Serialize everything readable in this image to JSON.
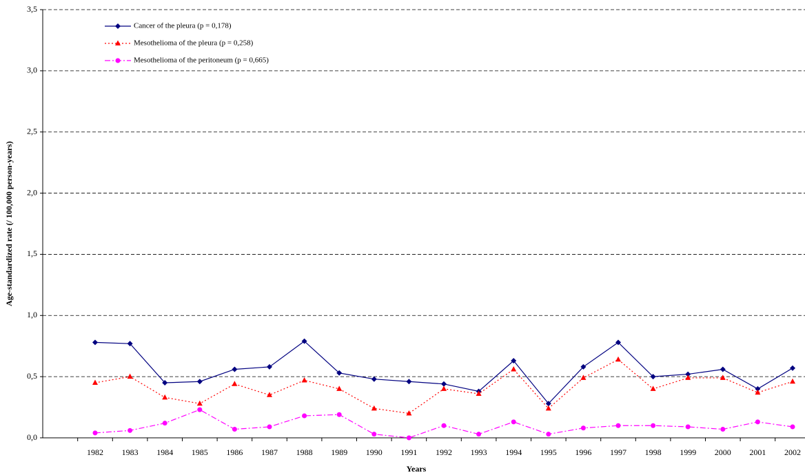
{
  "chart_data": {
    "type": "line",
    "xlabel": "Years",
    "ylabel": "Age-standardized rate (/ 100,000 person-years)",
    "categories": [
      "1982",
      "1983",
      "1984",
      "1985",
      "1986",
      "1987",
      "1988",
      "1989",
      "1990",
      "1991",
      "1992",
      "1993",
      "1994",
      "1995",
      "1996",
      "1997",
      "1998",
      "1999",
      "2000",
      "2001",
      "2002"
    ],
    "series": [
      {
        "name": "Cancer of the pleura (p = 0,178)",
        "color": "#000080",
        "marker": "diamond",
        "dash": "solid",
        "values": [
          0.78,
          0.77,
          0.45,
          0.46,
          0.56,
          0.58,
          0.79,
          0.53,
          0.48,
          0.46,
          0.44,
          0.38,
          0.63,
          0.28,
          0.58,
          0.78,
          0.5,
          0.52,
          0.56,
          0.4,
          0.57
        ]
      },
      {
        "name": "Mesothelioma of the pleura (p = 0,258)",
        "color": "#ff0000",
        "marker": "triangle",
        "dash": "dotted",
        "values": [
          0.45,
          0.5,
          0.33,
          0.28,
          0.44,
          0.35,
          0.47,
          0.4,
          0.24,
          0.2,
          0.4,
          0.36,
          0.56,
          0.24,
          0.49,
          0.64,
          0.4,
          0.49,
          0.49,
          0.37,
          0.46
        ]
      },
      {
        "name": "Mesothelioma of the peritoneum (p = 0,665)",
        "color": "#ff00ff",
        "marker": "circle",
        "dash": "dashdot",
        "values": [
          0.04,
          0.06,
          0.12,
          0.23,
          0.07,
          0.09,
          0.18,
          0.19,
          0.03,
          0.0,
          0.1,
          0.03,
          0.13,
          0.03,
          0.08,
          0.1,
          0.1,
          0.09,
          0.07,
          0.13,
          0.09
        ]
      }
    ],
    "ylim": [
      0,
      3.5
    ],
    "yticks": [
      {
        "value": 0,
        "label": "0,0"
      },
      {
        "value": 0.5,
        "label": "0,5"
      },
      {
        "value": 1,
        "label": "1,0"
      },
      {
        "value": 1.5,
        "label": "1,5"
      },
      {
        "value": 2,
        "label": "2,0"
      },
      {
        "value": 2.5,
        "label": "2,5"
      },
      {
        "value": 3,
        "label": "3,0"
      },
      {
        "value": 3.5,
        "label": "3,5"
      }
    ],
    "grid": true,
    "legend": "upper left"
  }
}
